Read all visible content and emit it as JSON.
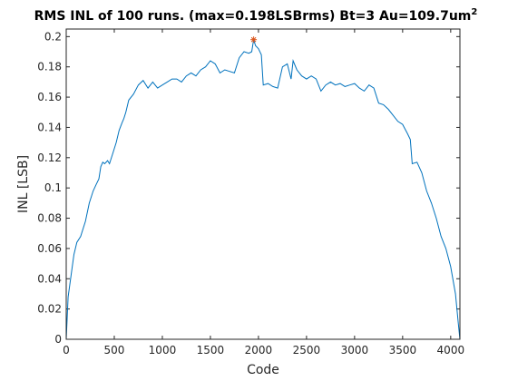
{
  "chart_data": {
    "type": "line",
    "title": "RMS INL of 100 runs. (max=0.198LSBrms) Bt=3 Au=109.7um",
    "title_superscript": "2",
    "xlabel": "Code",
    "ylabel": "INL [LSB]",
    "xlim": [
      0,
      4096
    ],
    "ylim": [
      0,
      0.205
    ],
    "xticks": [
      0,
      500,
      1000,
      1500,
      2000,
      2500,
      3000,
      3500,
      4000
    ],
    "yticks": [
      0,
      0.02,
      0.04,
      0.06,
      0.08,
      0.1,
      0.12,
      0.14,
      0.16,
      0.18,
      0.2
    ],
    "grid": false,
    "series_color": "#0072BD",
    "marker_color": "#D95319",
    "series": [
      {
        "x": [
          0,
          20,
          50,
          80,
          110,
          150,
          200,
          240,
          280,
          310,
          340,
          360,
          380,
          400,
          430,
          450,
          480,
          520,
          550,
          580,
          600,
          620,
          650,
          700,
          750,
          800,
          850,
          900,
          950,
          1000,
          1050,
          1100,
          1150,
          1200,
          1250,
          1300,
          1350,
          1400,
          1450,
          1500,
          1550,
          1600,
          1650,
          1700,
          1750,
          1800,
          1850,
          1900,
          1930,
          1950,
          1970,
          2000,
          2030,
          2050,
          2100,
          2150,
          2200,
          2250,
          2300,
          2340,
          2360,
          2400,
          2450,
          2500,
          2550,
          2600,
          2650,
          2700,
          2750,
          2800,
          2850,
          2900,
          2950,
          3000,
          3050,
          3100,
          3150,
          3200,
          3250,
          3300,
          3350,
          3400,
          3450,
          3500,
          3550,
          3580,
          3600,
          3650,
          3700,
          3750,
          3800,
          3850,
          3900,
          3950,
          4000,
          4050,
          4080,
          4096
        ],
        "y": [
          0.0,
          0.028,
          0.042,
          0.056,
          0.064,
          0.068,
          0.078,
          0.09,
          0.098,
          0.102,
          0.106,
          0.114,
          0.117,
          0.116,
          0.118,
          0.116,
          0.122,
          0.13,
          0.138,
          0.143,
          0.146,
          0.15,
          0.158,
          0.162,
          0.168,
          0.171,
          0.166,
          0.17,
          0.166,
          0.168,
          0.17,
          0.172,
          0.172,
          0.17,
          0.174,
          0.176,
          0.174,
          0.178,
          0.18,
          0.184,
          0.182,
          0.176,
          0.178,
          0.177,
          0.176,
          0.186,
          0.19,
          0.189,
          0.19,
          0.198,
          0.194,
          0.192,
          0.188,
          0.168,
          0.169,
          0.167,
          0.166,
          0.18,
          0.182,
          0.172,
          0.184,
          0.178,
          0.174,
          0.172,
          0.174,
          0.172,
          0.164,
          0.168,
          0.17,
          0.168,
          0.169,
          0.167,
          0.168,
          0.169,
          0.166,
          0.164,
          0.168,
          0.166,
          0.156,
          0.155,
          0.152,
          0.148,
          0.144,
          0.142,
          0.136,
          0.132,
          0.116,
          0.117,
          0.11,
          0.098,
          0.09,
          0.08,
          0.068,
          0.06,
          0.048,
          0.03,
          0.01,
          0.0
        ]
      }
    ],
    "max_marker": {
      "x": 1950,
      "y": 0.198
    }
  }
}
